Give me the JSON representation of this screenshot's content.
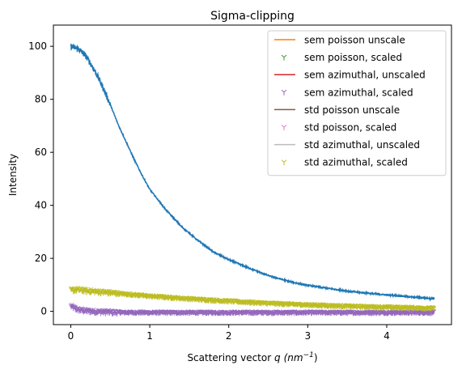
{
  "chart_data": {
    "type": "line",
    "title": "Sigma-clipping",
    "xlabel_prefix": "Scattering vector ",
    "xlabel_var": "q",
    "xlabel_unit": "(nm",
    "xlabel_exp": "−1",
    "xlabel_close": ")",
    "ylabel": "Intensity",
    "xlim": [
      -0.22,
      4.82
    ],
    "ylim": [
      -5,
      108
    ],
    "xticks": [
      0,
      1,
      2,
      3,
      4
    ],
    "yticks": [
      0,
      20,
      40,
      60,
      80,
      100
    ],
    "grid": false,
    "legend_position": "top-right",
    "series": [
      {
        "name": "sem poisson unscale",
        "marker": "line",
        "color": "#ff7f0e",
        "visible": false
      },
      {
        "name": "sem poisson, scaled",
        "marker": "tri",
        "color": "#2ca02c",
        "visible": false
      },
      {
        "name": "sem azimuthal, unscaled",
        "marker": "line",
        "color": "#d62728",
        "visible": false
      },
      {
        "name": "sem azimuthal, scaled",
        "marker": "tri",
        "color": "#9467bd",
        "x": [
          0.0,
          0.05,
          0.1,
          0.2,
          0.3,
          0.5,
          1.0,
          1.5,
          2.0,
          2.5,
          3.0,
          3.5,
          4.0,
          4.5,
          4.6
        ],
        "y": [
          2.0,
          1.2,
          0.6,
          0.2,
          0.0,
          -0.3,
          -0.4,
          -0.4,
          -0.4,
          -0.4,
          -0.4,
          -0.4,
          -0.4,
          -0.4,
          -0.4
        ]
      },
      {
        "name": "std poisson unscale",
        "marker": "line",
        "color": "#8c564b",
        "visible": false
      },
      {
        "name": "std poisson, scaled",
        "marker": "tri",
        "color": "#e377c2",
        "visible": false
      },
      {
        "name": "std azimuthal, unscaled",
        "marker": "line",
        "color": "#bcbcbc",
        "visible": false
      },
      {
        "name": "std azimuthal, scaled",
        "marker": "tri",
        "color": "#bcbd22",
        "x": [
          0.0,
          0.1,
          0.2,
          0.4,
          0.6,
          0.8,
          1.0,
          1.5,
          2.0,
          2.5,
          3.0,
          3.5,
          4.0,
          4.5,
          4.6
        ],
        "y": [
          8.0,
          8.2,
          7.8,
          7.3,
          6.8,
          6.3,
          5.8,
          4.8,
          3.9,
          3.1,
          2.5,
          2.0,
          1.6,
          1.3,
          1.2
        ]
      },
      {
        "name": "",
        "marker": "line",
        "color": "#1f77b4",
        "in_legend": false,
        "x": [
          0.0,
          0.1,
          0.2,
          0.3,
          0.4,
          0.5,
          0.6,
          0.7,
          0.8,
          0.9,
          1.0,
          1.2,
          1.4,
          1.6,
          1.8,
          2.0,
          2.2,
          2.5,
          2.8,
          3.0,
          3.3,
          3.6,
          4.0,
          4.3,
          4.5,
          4.6
        ],
        "y": [
          100.0,
          99.0,
          96.0,
          91.0,
          85.0,
          78.0,
          70.5,
          64.0,
          57.5,
          51.5,
          46.0,
          38.5,
          32.0,
          27.0,
          22.5,
          19.5,
          17.0,
          13.5,
          11.0,
          9.8,
          8.5,
          7.3,
          6.2,
          5.5,
          5.0,
          5.0
        ]
      }
    ]
  }
}
